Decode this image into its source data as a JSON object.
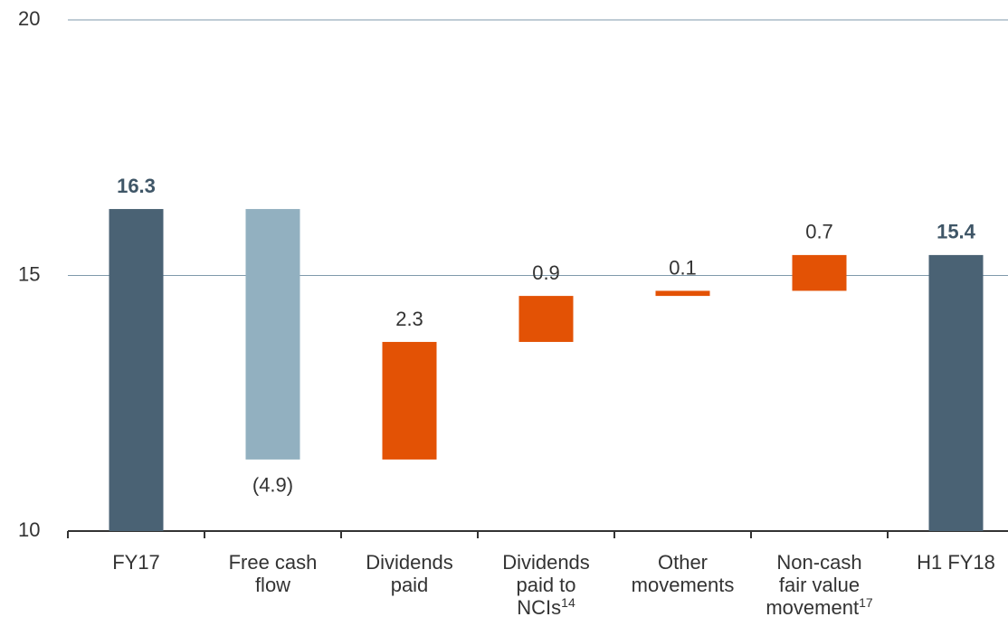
{
  "chart_data": {
    "type": "waterfall",
    "categories": [
      "FY17",
      "Free cash flow",
      "Dividends paid",
      "Dividends paid to NCIs",
      "Other movements",
      "Non-cash fair value movement",
      "H1 FY18"
    ],
    "category_notes": [
      null,
      null,
      null,
      "14",
      null,
      "17",
      null
    ],
    "values": [
      16.3,
      -4.9,
      2.3,
      0.9,
      0.1,
      0.7,
      15.4
    ],
    "value_labels": [
      "16.3",
      "(4.9)",
      "2.3",
      "0.9",
      "0.1",
      "0.7",
      "15.4"
    ],
    "measure": [
      "total",
      "relative",
      "relative",
      "relative",
      "relative",
      "relative",
      "total"
    ],
    "colors": {
      "total": "#4a6274",
      "decrease": "#92b0c0",
      "increase": "#e35205"
    },
    "ylim": [
      10,
      20
    ],
    "yticks": [
      10,
      15,
      20
    ],
    "grid": true
  }
}
